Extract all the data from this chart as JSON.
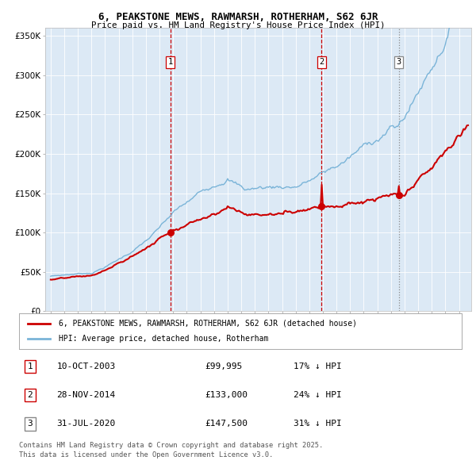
{
  "title": "6, PEAKSTONE MEWS, RAWMARSH, ROTHERHAM, S62 6JR",
  "subtitle": "Price paid vs. HM Land Registry's House Price Index (HPI)",
  "plot_bg_color": "#dce9f5",
  "fig_bg_color": "#ffffff",
  "hpi_color": "#7ab4d8",
  "price_color": "#cc0000",
  "vline1_x": 2003.79,
  "vline2_x": 2014.91,
  "vline3_x": 2020.58,
  "sale1_y": 99995,
  "sale2_y": 133000,
  "sale3_y": 147500,
  "sale1_date": "10-OCT-2003",
  "sale1_price": "£99,995",
  "sale1_pct": "17% ↓ HPI",
  "sale2_date": "28-NOV-2014",
  "sale2_price": "£133,000",
  "sale2_pct": "24% ↓ HPI",
  "sale3_date": "31-JUL-2020",
  "sale3_price": "£147,500",
  "sale3_pct": "31% ↓ HPI",
  "legend1": "6, PEAKSTONE MEWS, RAWMARSH, ROTHERHAM, S62 6JR (detached house)",
  "legend2": "HPI: Average price, detached house, Rotherham",
  "footer1": "Contains HM Land Registry data © Crown copyright and database right 2025.",
  "footer2": "This data is licensed under the Open Government Licence v3.0.",
  "ylim": [
    0,
    360000
  ],
  "yticks": [
    0,
    50000,
    100000,
    150000,
    200000,
    250000,
    300000,
    350000
  ],
  "xlim_start": 1994.6,
  "xlim_end": 2025.9
}
